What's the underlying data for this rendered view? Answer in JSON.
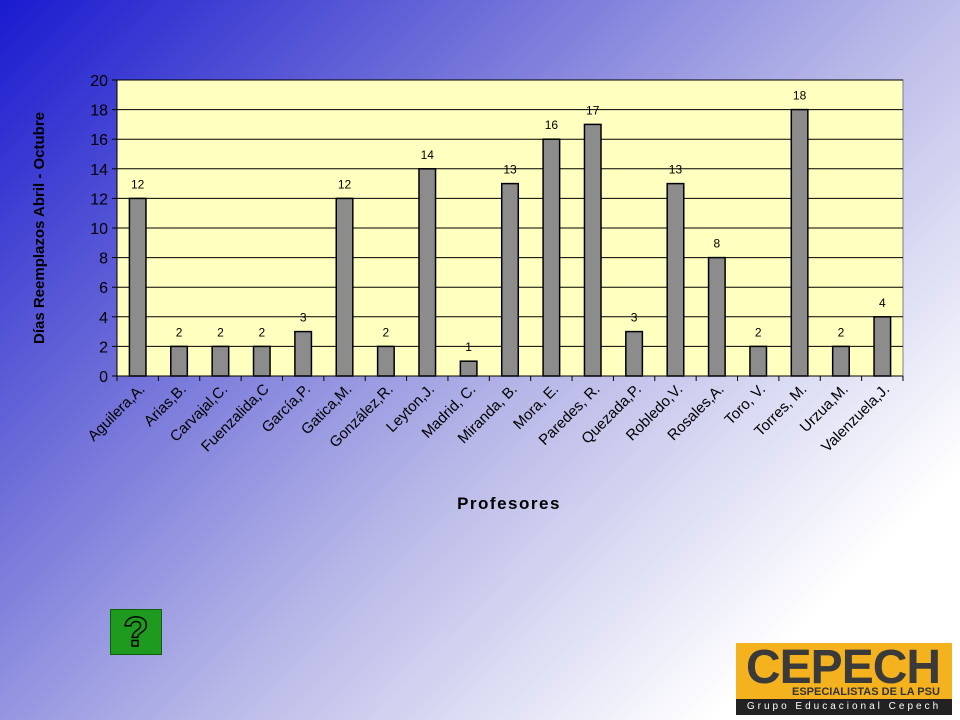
{
  "chart_data": {
    "type": "bar",
    "xlabel": "Profesores",
    "ylabel": "Días Reemplazos Abril - Octubre",
    "ylim": [
      0,
      20
    ],
    "yticks": [
      0,
      2,
      4,
      6,
      8,
      10,
      12,
      14,
      16,
      18,
      20
    ],
    "grid": true,
    "categories": [
      "Aguilera,A.",
      "Arias,B.",
      "Carvajal,C.",
      "Fuenzalida,C",
      "García,P.",
      "Gatica,M.",
      "González,R.",
      "Leyton,J.",
      "Madrid, C.",
      "Miranda, B.",
      "Mora, E.",
      "Paredes, R.",
      "Quezada,P.",
      "Robledo,V.",
      "Rosales,A.",
      "Toro, V.",
      "Torres, M.",
      "Urzua,M.",
      "Valenzuela,J."
    ],
    "values": [
      12,
      2,
      2,
      2,
      3,
      12,
      2,
      14,
      1,
      13,
      16,
      17,
      3,
      13,
      8,
      2,
      18,
      2,
      4
    ],
    "colors": {
      "plot_bg": "#ffffc0",
      "bar": "#8c8c8c",
      "bar_border": "#000000"
    }
  },
  "help_button": {
    "label": "?"
  },
  "logo": {
    "brand": "CEPECH",
    "tagline": "ESPECIALISTAS DE LA PSU",
    "footer": "Grupo Educacional Cepech"
  }
}
